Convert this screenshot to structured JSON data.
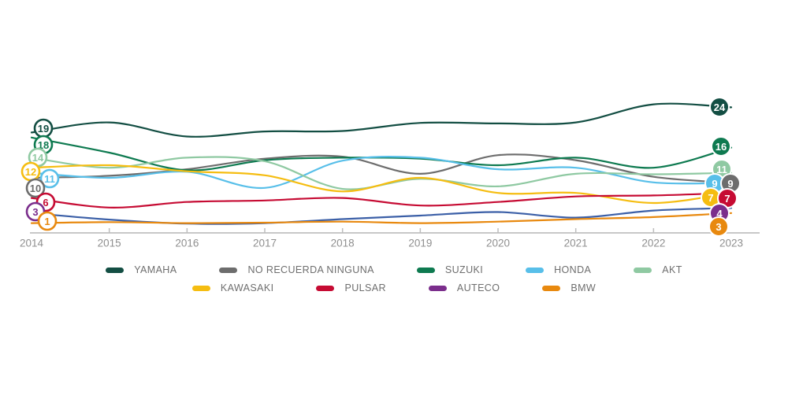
{
  "chart_data": {
    "type": "line",
    "title": "",
    "x": [
      2014,
      2015,
      2016,
      2017,
      2018,
      2019,
      2020,
      2021,
      2022,
      2023
    ],
    "x_tick_labels": [
      "2014",
      "2015",
      "2016",
      "2017",
      "2018",
      "2019",
      "2020",
      "2021",
      "2022",
      "2023"
    ],
    "ylim": [
      0,
      26
    ],
    "grid": false,
    "legend_position": "bottom",
    "series": [
      {
        "name": "YAMAHA",
        "color": "#134e43",
        "values": [
          19,
          21,
          18.2,
          19.2,
          19.3,
          20.9,
          20.8,
          21,
          24.6,
          24
        ],
        "start_label": "19",
        "end_label": "24"
      },
      {
        "name": "NO RECUERDA NINGUNA",
        "color": "#6d6d6d",
        "values": [
          10,
          10.4,
          11.7,
          13.8,
          14.2,
          10.8,
          14.5,
          13.5,
          10.2,
          9
        ],
        "start_label": "10",
        "end_label": "9"
      },
      {
        "name": "SUZUKI",
        "color": "#0e7a50",
        "values": [
          18,
          15,
          11.5,
          13.5,
          14,
          13.8,
          12.5,
          14,
          12,
          16
        ],
        "start_label": "18",
        "end_label": "16"
      },
      {
        "name": "HONDA",
        "color": "#58bfe9",
        "values": [
          11,
          10,
          11.2,
          8,
          13.4,
          14,
          11.7,
          12,
          9.1,
          9
        ],
        "start_label": "11",
        "end_label": "9"
      },
      {
        "name": "AKT",
        "color": "#8fc9a2",
        "values": [
          14,
          12,
          14,
          13.3,
          7.8,
          9.8,
          8.3,
          10.8,
          10.7,
          11
        ],
        "start_label": "14",
        "end_label": "11"
      },
      {
        "name": "KAWASAKI",
        "color": "#f5bd11",
        "values": [
          12,
          12.5,
          11.3,
          10.5,
          7.3,
          10,
          7,
          7,
          5,
          7
        ],
        "start_label": "12",
        "end_label": "7"
      },
      {
        "name": "PULSAR",
        "color": "#c60b33",
        "values": [
          6,
          4.1,
          5.2,
          5.5,
          6,
          4.5,
          5.2,
          6.3,
          6.5,
          7
        ],
        "start_label": "6",
        "end_label": "7"
      },
      {
        "name": "AUTECO",
        "color": "#7b2e8c",
        "line_color": "#3b5fa7",
        "values": [
          3,
          1.7,
          0.9,
          1,
          1.8,
          2.5,
          3.2,
          2.1,
          3.5,
          4
        ],
        "start_label": "3",
        "end_label": "4"
      },
      {
        "name": "BMW",
        "color": "#e8890f",
        "values": [
          1,
          1.2,
          1,
          1.1,
          1.3,
          1,
          1.3,
          1.8,
          2.2,
          3
        ],
        "start_label": "1",
        "end_label": "3"
      }
    ]
  },
  "legend": {
    "rows": [
      [
        "YAMAHA",
        "NO RECUERDA NINGUNA",
        "SUZUKI",
        "HONDA",
        "AKT"
      ],
      [
        "KAWASAKI",
        "PULSAR",
        "AUTECO",
        "BMW"
      ]
    ]
  },
  "axis": {
    "line_color": "#c8c8c8",
    "tick_color": "#bdbdbd",
    "label_color": "#8f8f8f"
  }
}
